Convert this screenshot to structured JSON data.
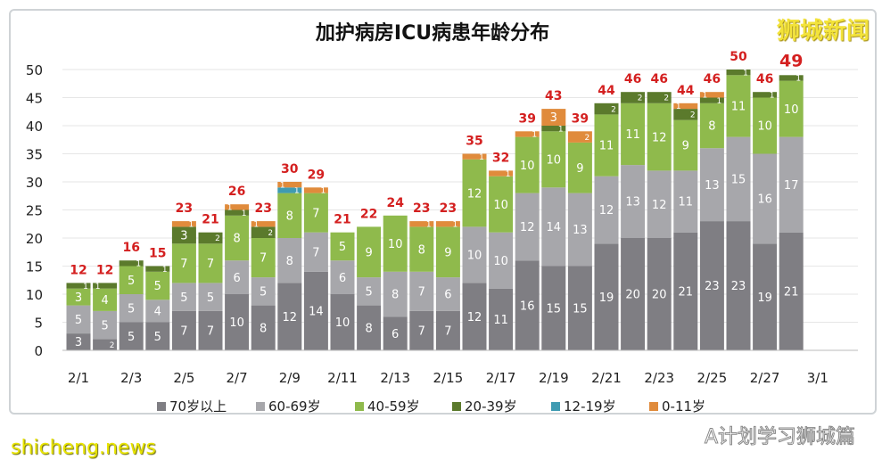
{
  "watermarks": {
    "brand_cn": "狮城新闻",
    "brand_en": "shicheng.news",
    "account": "A计划学习狮城篇"
  },
  "chart_data": {
    "type": "bar",
    "stacked": true,
    "title": "加护病房ICU病患年龄分布",
    "xlabel": "",
    "ylabel": "",
    "ylim": [
      0,
      50
    ],
    "yticks": [
      0,
      5,
      10,
      15,
      20,
      25,
      30,
      35,
      40,
      45,
      50
    ],
    "grid": true,
    "legend_position": "bottom",
    "categories": [
      "2/1",
      "2/2",
      "2/3",
      "2/4",
      "2/5",
      "2/6",
      "2/7",
      "2/8",
      "2/9",
      "2/10",
      "2/11",
      "2/12",
      "2/13",
      "2/14",
      "2/15",
      "2/16",
      "2/17",
      "2/18",
      "2/19",
      "2/20",
      "2/21",
      "2/22",
      "2/23",
      "2/24",
      "2/25",
      "2/26",
      "2/27",
      "2/28"
    ],
    "xtick_labels": [
      "2/1",
      "2/3",
      "2/5",
      "2/7",
      "2/9",
      "2/11",
      "2/13",
      "2/15",
      "2/17",
      "2/19",
      "2/21",
      "2/23",
      "2/25",
      "2/27",
      "3/1"
    ],
    "series": [
      {
        "name": "70岁以上",
        "color": "#7f7e83",
        "values": [
          3,
          2,
          5,
          5,
          7,
          7,
          10,
          8,
          12,
          14,
          10,
          8,
          6,
          7,
          7,
          12,
          11,
          16,
          15,
          15,
          19,
          20,
          20,
          21,
          23,
          23,
          19,
          21
        ]
      },
      {
        "name": "60-69岁",
        "color": "#a7a7ab",
        "values": [
          5,
          5,
          5,
          4,
          5,
          5,
          6,
          5,
          8,
          7,
          6,
          5,
          8,
          7,
          6,
          10,
          10,
          12,
          14,
          13,
          12,
          13,
          12,
          11,
          13,
          15,
          16,
          17
        ]
      },
      {
        "name": "40-59岁",
        "color": "#8fba4c",
        "values": [
          3,
          4,
          5,
          5,
          7,
          7,
          8,
          7,
          8,
          7,
          5,
          9,
          10,
          8,
          9,
          12,
          10,
          10,
          10,
          9,
          11,
          11,
          12,
          9,
          8,
          11,
          10,
          10
        ]
      },
      {
        "name": "20-39岁",
        "color": "#5b7a2c",
        "values": [
          1,
          1,
          1,
          1,
          3,
          2,
          1,
          2,
          0,
          0,
          0,
          0,
          0,
          0,
          0,
          0,
          0,
          0,
          1,
          0,
          2,
          2,
          2,
          2,
          1,
          1,
          1,
          1
        ]
      },
      {
        "name": "12-19岁",
        "color": "#3f9bb2",
        "values": [
          0,
          0,
          0,
          0,
          0,
          0,
          0,
          0,
          1,
          0,
          0,
          0,
          0,
          0,
          0,
          0,
          0,
          0,
          0,
          0,
          0,
          0,
          0,
          0,
          0,
          0,
          0,
          0
        ]
      },
      {
        "name": "0-11岁",
        "color": "#e08b3c",
        "values": [
          0,
          0,
          0,
          0,
          1,
          0,
          1,
          1,
          1,
          1,
          0,
          0,
          0,
          1,
          1,
          1,
          1,
          1,
          3,
          2,
          0,
          0,
          0,
          1,
          1,
          0,
          0,
          0
        ]
      }
    ],
    "totals": [
      12,
      12,
      16,
      15,
      23,
      21,
      26,
      23,
      30,
      29,
      21,
      22,
      24,
      23,
      23,
      35,
      32,
      39,
      43,
      39,
      44,
      46,
      46,
      44,
      46,
      50,
      46,
      49
    ],
    "total_color": "#d42020"
  }
}
